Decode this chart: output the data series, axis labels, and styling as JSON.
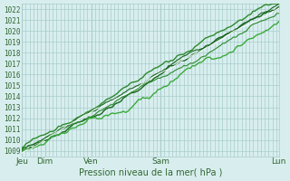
{
  "title": "",
  "xlabel": "Pression niveau de la mer( hPa )",
  "ylabel": "",
  "ylim": [
    1008.5,
    1022.5
  ],
  "yticks": [
    1009,
    1010,
    1011,
    1012,
    1013,
    1014,
    1015,
    1016,
    1017,
    1018,
    1019,
    1020,
    1021,
    1022
  ],
  "xlim": [
    0,
    1.0
  ],
  "xtick_positions": [
    0.0,
    0.09,
    0.27,
    0.54,
    1.0
  ],
  "xtick_labels": [
    "Jeu",
    "Dim",
    "Ven",
    "Sam",
    "Lun"
  ],
  "bg_color": "#d8eeee",
  "grid_color": "#aacccc",
  "line_colors": [
    "#1a6620",
    "#2d8a2d",
    "#3aaa3a",
    "#1a6620",
    "#2d8a2d",
    "#ffffff"
  ],
  "axis_color": "#336633",
  "text_color": "#336633",
  "num_points": 120
}
